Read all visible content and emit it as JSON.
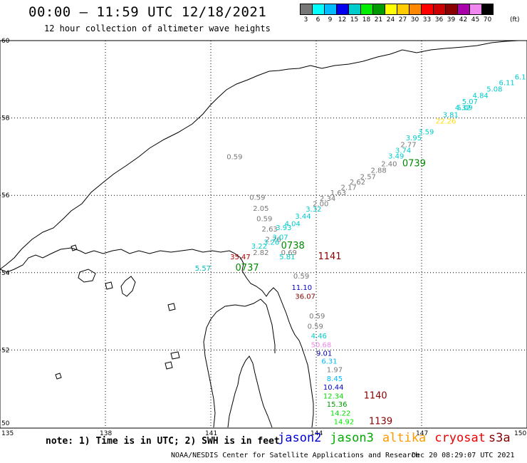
{
  "header": {
    "title": "00:00 – 11:59 UTC 12/18/2021",
    "subtitle": "12 hour collection of altimeter wave heights"
  },
  "colorbar": {
    "unit": "(ft)",
    "labels": [
      "3",
      "6",
      "9",
      "12",
      "15",
      "18",
      "21",
      "24",
      "27",
      "30",
      "33",
      "36",
      "39",
      "42",
      "45",
      "70"
    ],
    "colors": [
      "#777777",
      "#00ffff",
      "#00bbff",
      "#0000ee",
      "#00cccc",
      "#00ee00",
      "#009900",
      "#ffff00",
      "#ffcc00",
      "#ff8800",
      "#ff0000",
      "#cc0000",
      "#880000",
      "#aa00aa",
      "#ee88ee",
      "#000000"
    ]
  },
  "map": {
    "lat_ticks": [
      "60",
      "58",
      "56",
      "54",
      "52",
      "50"
    ],
    "lon_ticks": [
      "135",
      "138",
      "141",
      "144",
      "147",
      "150"
    ],
    "observations": [
      {
        "text": "0.59",
        "lon": 141.45,
        "lat": 56.93,
        "color": "#777777"
      },
      {
        "text": "0.59",
        "lon": 142.1,
        "lat": 55.88,
        "color": "#777777"
      },
      {
        "text": "2.05",
        "lon": 142.2,
        "lat": 55.6,
        "color": "#777777"
      },
      {
        "text": "0.59",
        "lon": 142.3,
        "lat": 55.33,
        "color": "#777777"
      },
      {
        "text": "2.63",
        "lon": 142.45,
        "lat": 55.06,
        "color": "#777777"
      },
      {
        "text": "2.76",
        "lon": 142.55,
        "lat": 54.8,
        "color": "#777777"
      },
      {
        "text": "2.82",
        "lon": 142.2,
        "lat": 54.46,
        "color": "#777777"
      },
      {
        "text": "0.69",
        "lon": 143.0,
        "lat": 54.46,
        "color": "#777777"
      },
      {
        "text": "35.47",
        "lon": 141.55,
        "lat": 54.35,
        "color": "#aa0000"
      },
      {
        "text": "5.81",
        "lon": 142.95,
        "lat": 54.35,
        "color": "#00cccc"
      },
      {
        "text": "1141",
        "lon": 144.05,
        "lat": 54.35,
        "color": "#880000",
        "size": 13
      },
      {
        "text": "5.57",
        "lon": 140.55,
        "lat": 54.05,
        "color": "#00bbbb"
      },
      {
        "text": "0737",
        "lon": 141.7,
        "lat": 54.05,
        "color": "#008800",
        "size": 13
      },
      {
        "text": "0.59",
        "lon": 143.35,
        "lat": 53.85,
        "color": "#777777"
      },
      {
        "text": "11.10",
        "lon": 143.3,
        "lat": 53.55,
        "color": "#0000cc"
      },
      {
        "text": "36.07",
        "lon": 143.4,
        "lat": 53.32,
        "color": "#880000"
      },
      {
        "text": "0.59",
        "lon": 143.8,
        "lat": 52.82,
        "color": "#777777"
      },
      {
        "text": "0.59",
        "lon": 143.75,
        "lat": 52.55,
        "color": "#777777"
      },
      {
        "text": "4.46",
        "lon": 143.85,
        "lat": 52.3,
        "color": "#00cccc"
      },
      {
        "text": "50.68",
        "lon": 143.85,
        "lat": 52.07,
        "color": "#ee88ee"
      },
      {
        "text": "9.01",
        "lon": 144.0,
        "lat": 51.85,
        "color": "#0000aa"
      },
      {
        "text": "6.31",
        "lon": 144.15,
        "lat": 51.65,
        "color": "#00bbff"
      },
      {
        "text": "1.97",
        "lon": 144.3,
        "lat": 51.43,
        "color": "#777777"
      },
      {
        "text": "8.45",
        "lon": 144.3,
        "lat": 51.2,
        "color": "#00bbff"
      },
      {
        "text": "10.44",
        "lon": 144.2,
        "lat": 50.98,
        "color": "#0000cc"
      },
      {
        "text": "12.34",
        "lon": 144.2,
        "lat": 50.75,
        "color": "#00dd00"
      },
      {
        "text": "1140",
        "lon": 145.35,
        "lat": 50.75,
        "color": "#880000",
        "size": 13
      },
      {
        "text": "15.36",
        "lon": 144.3,
        "lat": 50.53,
        "color": "#009900"
      },
      {
        "text": "14.22",
        "lon": 144.4,
        "lat": 50.3,
        "color": "#00dd00"
      },
      {
        "text": "14.92",
        "lon": 144.5,
        "lat": 50.08,
        "color": "#00ee00"
      },
      {
        "text": "1139",
        "lon": 145.5,
        "lat": 50.08,
        "color": "#880000",
        "size": 13
      },
      {
        "text": "3.22",
        "lon": 142.15,
        "lat": 54.62,
        "color": "#00cccc"
      },
      {
        "text": "3.26",
        "lon": 142.5,
        "lat": 54.72,
        "color": "#00cccc"
      },
      {
        "text": "3.07",
        "lon": 142.75,
        "lat": 54.85,
        "color": "#00cccc"
      },
      {
        "text": "0738",
        "lon": 143.0,
        "lat": 54.62,
        "color": "#008800",
        "size": 13
      },
      {
        "text": "3.93",
        "lon": 142.85,
        "lat": 55.1,
        "color": "#00cccc"
      },
      {
        "text": "4.04",
        "lon": 143.1,
        "lat": 55.2,
        "color": "#00cccc"
      },
      {
        "text": "3.44",
        "lon": 143.4,
        "lat": 55.4,
        "color": "#00cccc"
      },
      {
        "text": "3.32",
        "lon": 143.7,
        "lat": 55.58,
        "color": "#00cccc"
      },
      {
        "text": "2.00",
        "lon": 143.9,
        "lat": 55.72,
        "color": "#777777"
      },
      {
        "text": "2.34",
        "lon": 144.1,
        "lat": 55.86,
        "color": "#777777"
      },
      {
        "text": "1.63",
        "lon": 144.4,
        "lat": 56.0,
        "color": "#777777"
      },
      {
        "text": "2.17",
        "lon": 144.7,
        "lat": 56.14,
        "color": "#777777"
      },
      {
        "text": "2.62",
        "lon": 144.95,
        "lat": 56.28,
        "color": "#777777"
      },
      {
        "text": "2.57",
        "lon": 145.25,
        "lat": 56.42,
        "color": "#777777"
      },
      {
        "text": "2.88",
        "lon": 145.55,
        "lat": 56.58,
        "color": "#777777"
      },
      {
        "text": "2.40",
        "lon": 145.85,
        "lat": 56.75,
        "color": "#777777"
      },
      {
        "text": "0739",
        "lon": 146.45,
        "lat": 56.75,
        "color": "#008800",
        "size": 13
      },
      {
        "text": "3.49",
        "lon": 146.05,
        "lat": 56.95,
        "color": "#00cccc"
      },
      {
        "text": "3.74",
        "lon": 146.25,
        "lat": 57.1,
        "color": "#00cccc"
      },
      {
        "text": "2.77",
        "lon": 146.4,
        "lat": 57.25,
        "color": "#777777"
      },
      {
        "text": "3.95",
        "lon": 146.55,
        "lat": 57.42,
        "color": "#00cccc"
      },
      {
        "text": "3.59",
        "lon": 146.9,
        "lat": 57.58,
        "color": "#00cccc"
      },
      {
        "text": "22.26",
        "lon": 147.4,
        "lat": 57.85,
        "color": "#ffdd00"
      },
      {
        "text": "3.81",
        "lon": 147.6,
        "lat": 58.02,
        "color": "#00cccc"
      },
      {
        "text": "4.32",
        "lon": 147.95,
        "lat": 58.2,
        "color": "#00cccc"
      },
      {
        "text": "5.07",
        "lon": 148.15,
        "lat": 58.36,
        "color": "#00cccc"
      },
      {
        "text": "4.84",
        "lon": 148.45,
        "lat": 58.52,
        "color": "#00cccc"
      },
      {
        "text": "5.08",
        "lon": 148.85,
        "lat": 58.68,
        "color": "#00cccc"
      },
      {
        "text": "6.11",
        "lon": 149.2,
        "lat": 58.85,
        "color": "#00cccc"
      },
      {
        "text": "6.1",
        "lon": 149.65,
        "lat": 59.0,
        "color": "#00cccc"
      },
      {
        "text": "5.09",
        "lon": 148.0,
        "lat": 58.2,
        "color": "#00cccc"
      }
    ]
  },
  "footer": {
    "note": "note: 1) Time is in UTC; 2) SWH is in feet",
    "satellites": [
      {
        "name": "jason2",
        "color": "#0000dd"
      },
      {
        "name": "jason3",
        "color": "#00aa00"
      },
      {
        "name": "altika",
        "color": "#ff9900"
      },
      {
        "name": "cryosat",
        "color": "#ee0000"
      },
      {
        "name": "s3a",
        "color": "#880000"
      }
    ],
    "credit": "NOAA/NESDIS Center for Satellite Applications and Research",
    "timestamp": "Dec 20 08:29:07 UTC 2021"
  }
}
